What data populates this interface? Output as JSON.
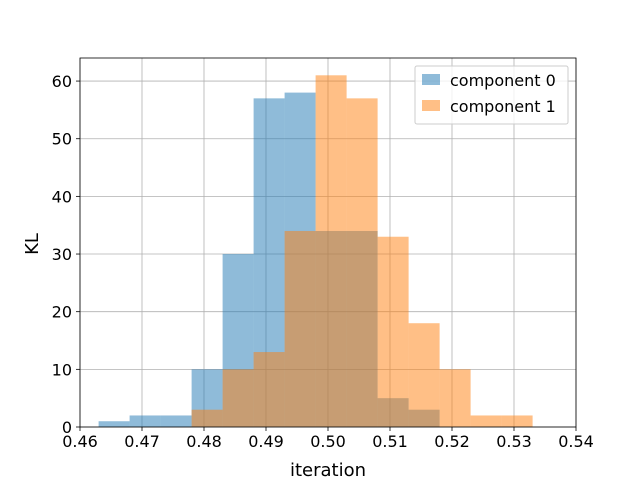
{
  "chart_data": {
    "type": "bar",
    "title": "",
    "xlabel": "iteration",
    "ylabel": "KL",
    "xlim": [
      0.46,
      0.54
    ],
    "ylim": [
      0,
      64
    ],
    "xticks": [
      0.46,
      0.47,
      0.48,
      0.49,
      0.5,
      0.51,
      0.52,
      0.53,
      0.54
    ],
    "xtick_labels": [
      "0.46",
      "0.47",
      "0.48",
      "0.49",
      "0.50",
      "0.51",
      "0.52",
      "0.53",
      "0.54"
    ],
    "yticks": [
      0,
      10,
      20,
      30,
      40,
      50,
      60
    ],
    "ytick_labels": [
      "0",
      "10",
      "20",
      "30",
      "40",
      "50",
      "60"
    ],
    "grid": true,
    "legend_position": "top-right",
    "series": [
      {
        "name": "component 0",
        "color": "#1f77b4",
        "alpha": 0.5,
        "bin_edges": [
          0.463,
          0.468,
          0.473,
          0.478,
          0.483,
          0.488,
          0.493,
          0.498,
          0.503,
          0.508,
          0.513,
          0.518
        ],
        "bin_width": 0.005,
        "values": [
          1,
          2,
          2,
          10,
          30,
          57,
          58,
          34,
          34,
          5,
          3
        ]
      },
      {
        "name": "component 1",
        "color": "#ff7f0e",
        "alpha": 0.5,
        "bin_edges": [
          0.478,
          0.483,
          0.488,
          0.493,
          0.498,
          0.503,
          0.508,
          0.513,
          0.518,
          0.523,
          0.528,
          0.533
        ],
        "bin_width": 0.005,
        "values": [
          3,
          10,
          13,
          34,
          61,
          57,
          33,
          18,
          10,
          2,
          2
        ]
      }
    ],
    "overlap_color": "#c8966f"
  }
}
